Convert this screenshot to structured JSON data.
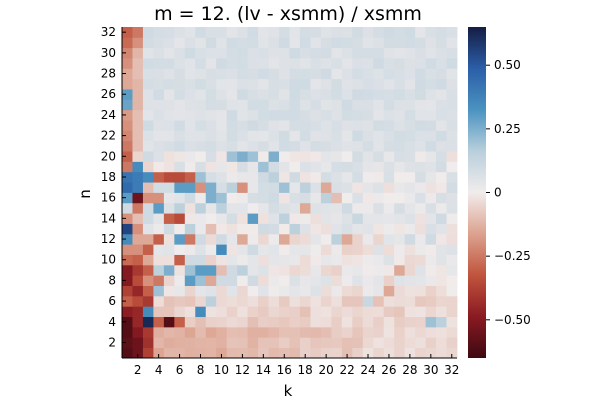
{
  "chart_data": {
    "type": "heatmap",
    "title": "m = 12. (lv - xsmm) / xsmm",
    "xlabel": "k",
    "ylabel": "n",
    "x": [
      1,
      2,
      3,
      4,
      5,
      6,
      7,
      8,
      9,
      10,
      11,
      12,
      13,
      14,
      15,
      16,
      17,
      18,
      19,
      20,
      21,
      22,
      23,
      24,
      25,
      26,
      27,
      28,
      29,
      30,
      31,
      32
    ],
    "y": [
      1,
      2,
      3,
      4,
      5,
      6,
      7,
      8,
      9,
      10,
      11,
      12,
      13,
      14,
      15,
      16,
      17,
      18,
      19,
      20,
      21,
      22,
      23,
      24,
      25,
      26,
      27,
      28,
      29,
      30,
      31,
      32
    ],
    "x_ticks": [
      "2",
      "4",
      "6",
      "8",
      "10",
      "12",
      "14",
      "16",
      "18",
      "20",
      "22",
      "24",
      "26",
      "28",
      "30",
      "32"
    ],
    "y_ticks": [
      "2",
      "4",
      "6",
      "8",
      "10",
      "12",
      "14",
      "16",
      "18",
      "20",
      "22",
      "24",
      "26",
      "28",
      "30",
      "32"
    ],
    "colorbar": {
      "range": [
        -0.65,
        0.65
      ],
      "ticks": [
        "0.50",
        "0.25",
        "0",
        "−0.25",
        "−0.50"
      ],
      "tick_values": [
        0.5,
        0.25,
        0,
        -0.25,
        -0.5
      ],
      "colormap": "balance",
      "colors": [
        "#3c0911",
        "#8a1a22",
        "#c0543d",
        "#dca28f",
        "#f1ecec",
        "#b9cfdc",
        "#4a93c0",
        "#2b5ea8",
        "#151d44"
      ]
    },
    "special_cells": [
      {
        "k": 1,
        "n": 1,
        "v": -0.6
      },
      {
        "k": 1,
        "n": 2,
        "v": -0.58
      },
      {
        "k": 1,
        "n": 3,
        "v": -0.6
      },
      {
        "k": 1,
        "n": 4,
        "v": -0.6
      },
      {
        "k": 1,
        "n": 5,
        "v": -0.48
      },
      {
        "k": 1,
        "n": 6,
        "v": -0.3
      },
      {
        "k": 1,
        "n": 7,
        "v": -0.38
      },
      {
        "k": 1,
        "n": 8,
        "v": -0.5
      },
      {
        "k": 1,
        "n": 9,
        "v": -0.5
      },
      {
        "k": 1,
        "n": 10,
        "v": -0.28
      },
      {
        "k": 1,
        "n": 11,
        "v": -0.2
      },
      {
        "k": 1,
        "n": 12,
        "v": 0.35
      },
      {
        "k": 1,
        "n": 13,
        "v": 0.55
      },
      {
        "k": 1,
        "n": 14,
        "v": -0.2
      },
      {
        "k": 1,
        "n": 15,
        "v": 0.1
      },
      {
        "k": 1,
        "n": 16,
        "v": 0.3
      },
      {
        "k": 1,
        "n": 17,
        "v": 0.45
      },
      {
        "k": 1,
        "n": 18,
        "v": 0.42
      },
      {
        "k": 1,
        "n": 19,
        "v": -0.25
      },
      {
        "k": 1,
        "n": 20,
        "v": -0.3
      },
      {
        "k": 1,
        "n": 21,
        "v": -0.25
      },
      {
        "k": 1,
        "n": 22,
        "v": -0.22
      },
      {
        "k": 1,
        "n": 23,
        "v": -0.2
      },
      {
        "k": 1,
        "n": 24,
        "v": -0.18
      },
      {
        "k": 1,
        "n": 25,
        "v": 0.28
      },
      {
        "k": 1,
        "n": 26,
        "v": 0.3
      },
      {
        "k": 1,
        "n": 27,
        "v": -0.15
      },
      {
        "k": 1,
        "n": 28,
        "v": -0.15
      },
      {
        "k": 1,
        "n": 29,
        "v": -0.2
      },
      {
        "k": 1,
        "n": 30,
        "v": -0.22
      },
      {
        "k": 1,
        "n": 31,
        "v": -0.28
      },
      {
        "k": 1,
        "n": 32,
        "v": -0.3
      },
      {
        "k": 2,
        "n": 1,
        "v": -0.55
      },
      {
        "k": 2,
        "n": 2,
        "v": -0.55
      },
      {
        "k": 2,
        "n": 3,
        "v": -0.5
      },
      {
        "k": 2,
        "n": 4,
        "v": -0.45
      },
      {
        "k": 2,
        "n": 5,
        "v": -0.45
      },
      {
        "k": 2,
        "n": 6,
        "v": -0.35
      },
      {
        "k": 2,
        "n": 7,
        "v": -0.45
      },
      {
        "k": 2,
        "n": 8,
        "v": -0.35
      },
      {
        "k": 2,
        "n": 9,
        "v": -0.4
      },
      {
        "k": 2,
        "n": 10,
        "v": -0.3
      },
      {
        "k": 2,
        "n": 11,
        "v": -0.2
      },
      {
        "k": 2,
        "n": 12,
        "v": -0.15
      },
      {
        "k": 2,
        "n": 13,
        "v": -0.2
      },
      {
        "k": 2,
        "n": 14,
        "v": -0.1
      },
      {
        "k": 2,
        "n": 15,
        "v": -0.25
      },
      {
        "k": 2,
        "n": 16,
        "v": -0.55
      },
      {
        "k": 2,
        "n": 17,
        "v": 0.4
      },
      {
        "k": 2,
        "n": 18,
        "v": 0.4
      },
      {
        "k": 2,
        "n": 19,
        "v": 0.35
      },
      {
        "k": 2,
        "n": 20,
        "v": -0.05
      },
      {
        "k": 2,
        "n": 21,
        "v": -0.1
      },
      {
        "k": 2,
        "n": 22,
        "v": -0.1
      },
      {
        "k": 2,
        "n": 23,
        "v": -0.1
      },
      {
        "k": 2,
        "n": 24,
        "v": -0.1
      },
      {
        "k": 2,
        "n": 25,
        "v": -0.12
      },
      {
        "k": 2,
        "n": 26,
        "v": -0.12
      },
      {
        "k": 2,
        "n": 27,
        "v": -0.12
      },
      {
        "k": 2,
        "n": 28,
        "v": -0.1
      },
      {
        "k": 2,
        "n": 29,
        "v": -0.1
      },
      {
        "k": 2,
        "n": 30,
        "v": -0.12
      },
      {
        "k": 2,
        "n": 31,
        "v": -0.2
      },
      {
        "k": 2,
        "n": 32,
        "v": -0.25
      },
      {
        "k": 3,
        "n": 1,
        "v": -0.38
      },
      {
        "k": 3,
        "n": 2,
        "v": -0.42
      },
      {
        "k": 3,
        "n": 3,
        "v": -0.4
      },
      {
        "k": 3,
        "n": 4,
        "v": 0.62
      },
      {
        "k": 3,
        "n": 5,
        "v": 0.35
      },
      {
        "k": 3,
        "n": 6,
        "v": -0.4
      },
      {
        "k": 3,
        "n": 7,
        "v": -0.3
      },
      {
        "k": 3,
        "n": 8,
        "v": -0.2
      },
      {
        "k": 3,
        "n": 9,
        "v": -0.3
      },
      {
        "k": 3,
        "n": 10,
        "v": -0.15
      },
      {
        "k": 3,
        "n": 11,
        "v": -0.3
      },
      {
        "k": 3,
        "n": 12,
        "v": -0.15
      },
      {
        "k": 3,
        "n": 13,
        "v": 0.05
      },
      {
        "k": 3,
        "n": 14,
        "v": 0.1
      },
      {
        "k": 3,
        "n": 15,
        "v": 0.1
      },
      {
        "k": 3,
        "n": 16,
        "v": -0.2
      },
      {
        "k": 3,
        "n": 17,
        "v": -0.1
      },
      {
        "k": 3,
        "n": 18,
        "v": 0.35
      },
      {
        "k": 3,
        "n": 19,
        "v": -0.05
      },
      {
        "k": 3,
        "n": 20,
        "v": 0.1
      },
      {
        "k": 4,
        "n": 4,
        "v": -0.3
      },
      {
        "k": 4,
        "n": 7,
        "v": 0.2
      },
      {
        "k": 4,
        "n": 8,
        "v": -0.25
      },
      {
        "k": 4,
        "n": 9,
        "v": 0.15
      },
      {
        "k": 4,
        "n": 15,
        "v": 0.3
      },
      {
        "k": 4,
        "n": 16,
        "v": -0.2
      },
      {
        "k": 4,
        "n": 18,
        "v": -0.3
      },
      {
        "k": 4,
        "n": 12,
        "v": -0.3
      },
      {
        "k": 5,
        "n": 4,
        "v": -0.6
      },
      {
        "k": 5,
        "n": 9,
        "v": 0.25
      },
      {
        "k": 5,
        "n": 11,
        "v": 0.05
      },
      {
        "k": 5,
        "n": 18,
        "v": -0.35
      },
      {
        "k": 5,
        "n": 13,
        "v": 0.1
      },
      {
        "k": 5,
        "n": 14,
        "v": -0.3
      },
      {
        "k": 6,
        "n": 4,
        "v": -0.3
      },
      {
        "k": 6,
        "n": 12,
        "v": 0.3
      },
      {
        "k": 6,
        "n": 14,
        "v": -0.35
      },
      {
        "k": 6,
        "n": 15,
        "v": 0.15
      },
      {
        "k": 6,
        "n": 17,
        "v": 0.3
      },
      {
        "k": 6,
        "n": 18,
        "v": -0.35
      },
      {
        "k": 6,
        "n": 10,
        "v": -0.3
      },
      {
        "k": 7,
        "n": 8,
        "v": 0.3
      },
      {
        "k": 7,
        "n": 12,
        "v": -0.25
      },
      {
        "k": 7,
        "n": 13,
        "v": 0.15
      },
      {
        "k": 7,
        "n": 9,
        "v": 0.2
      },
      {
        "k": 7,
        "n": 10,
        "v": 0.1
      },
      {
        "k": 7,
        "n": 17,
        "v": 0.3
      },
      {
        "k": 7,
        "n": 18,
        "v": -0.3
      },
      {
        "k": 7,
        "n": 16,
        "v": 0.1
      },
      {
        "k": 8,
        "n": 5,
        "v": 0.35
      },
      {
        "k": 8,
        "n": 9,
        "v": 0.3
      },
      {
        "k": 8,
        "n": 8,
        "v": 0.2
      },
      {
        "k": 8,
        "n": 15,
        "v": 0.15
      },
      {
        "k": 8,
        "n": 17,
        "v": -0.2
      },
      {
        "k": 8,
        "n": 18,
        "v": 0.2
      },
      {
        "k": 8,
        "n": 10,
        "v": 0.1
      },
      {
        "k": 8,
        "n": 12,
        "v": 0.1
      },
      {
        "k": 9,
        "n": 9,
        "v": 0.3
      },
      {
        "k": 9,
        "n": 16,
        "v": 0.25
      },
      {
        "k": 9,
        "n": 17,
        "v": 0.25
      },
      {
        "k": 9,
        "n": 6,
        "v": 0.15
      },
      {
        "k": 9,
        "n": 13,
        "v": -0.1
      },
      {
        "k": 9,
        "n": 8,
        "v": -0.15
      },
      {
        "k": 10,
        "n": 11,
        "v": 0.35
      },
      {
        "k": 10,
        "n": 16,
        "v": 0.2
      },
      {
        "k": 10,
        "n": 15,
        "v": 0.15
      },
      {
        "k": 10,
        "n": 8,
        "v": 0.1
      },
      {
        "k": 10,
        "n": 12,
        "v": 0.1
      },
      {
        "k": 10,
        "n": 9,
        "v": -0.1
      },
      {
        "k": 11,
        "n": 20,
        "v": 0.2
      },
      {
        "k": 11,
        "n": 17,
        "v": 0.15
      },
      {
        "k": 11,
        "n": 8,
        "v": 0.1
      },
      {
        "k": 11,
        "n": 9,
        "v": 0.1
      },
      {
        "k": 12,
        "n": 20,
        "v": 0.25
      },
      {
        "k": 12,
        "n": 17,
        "v": -0.2
      },
      {
        "k": 12,
        "n": 12,
        "v": -0.15
      },
      {
        "k": 12,
        "n": 9,
        "v": 0.15
      },
      {
        "k": 13,
        "n": 14,
        "v": 0.3
      },
      {
        "k": 13,
        "n": 20,
        "v": 0.2
      },
      {
        "k": 13,
        "n": 8,
        "v": 0.1
      },
      {
        "k": 13,
        "n": 11,
        "v": 0.1
      },
      {
        "k": 14,
        "n": 19,
        "v": 0.2
      },
      {
        "k": 14,
        "n": 18,
        "v": 0.1
      },
      {
        "k": 14,
        "n": 13,
        "v": 0.1
      },
      {
        "k": 15,
        "n": 20,
        "v": 0.25
      },
      {
        "k": 15,
        "n": 18,
        "v": 0.15
      },
      {
        "k": 15,
        "n": 16,
        "v": 0.1
      },
      {
        "k": 16,
        "n": 17,
        "v": 0.2
      },
      {
        "k": 16,
        "n": 14,
        "v": 0.15
      },
      {
        "k": 16,
        "n": 12,
        "v": -0.15
      },
      {
        "k": 17,
        "n": 13,
        "v": 0.15
      },
      {
        "k": 17,
        "n": 18,
        "v": 0.1
      },
      {
        "k": 18,
        "n": 15,
        "v": -0.15
      },
      {
        "k": 18,
        "n": 17,
        "v": 0.15
      },
      {
        "k": 20,
        "n": 16,
        "v": 0.15
      },
      {
        "k": 20,
        "n": 17,
        "v": -0.15
      },
      {
        "k": 21,
        "n": 12,
        "v": 0.15
      },
      {
        "k": 22,
        "n": 12,
        "v": -0.15
      },
      {
        "k": 21,
        "n": 16,
        "v": -0.1
      },
      {
        "k": 22,
        "n": 15,
        "v": 0.1
      },
      {
        "k": 23,
        "n": 14,
        "v": 0.12
      },
      {
        "k": 24,
        "n": 6,
        "v": 0.12
      },
      {
        "k": 26,
        "n": 7,
        "v": -0.15
      },
      {
        "k": 27,
        "n": 9,
        "v": -0.15
      },
      {
        "k": 28,
        "n": 12,
        "v": 0.1
      },
      {
        "k": 30,
        "n": 4,
        "v": 0.2
      },
      {
        "k": 31,
        "n": 4,
        "v": 0.15
      },
      {
        "k": 30,
        "n": 12,
        "v": 0.1
      },
      {
        "k": 31,
        "n": 14,
        "v": 0.1
      }
    ]
  }
}
